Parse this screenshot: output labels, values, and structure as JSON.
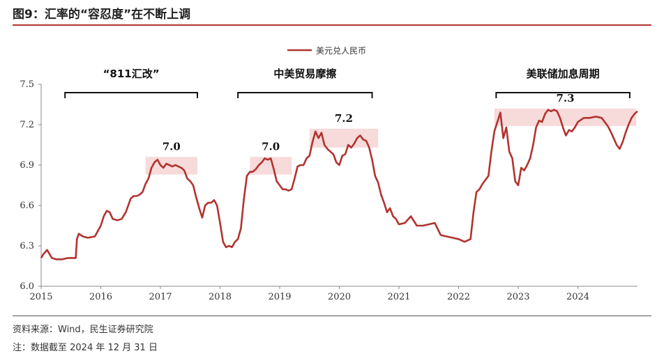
{
  "figure": {
    "title": "图9：汇率的“容忍度”在不断上调",
    "source": "资料来源：Wind，民生证券研究院",
    "note": "注：数据截至 2024 年 12 月 31 日"
  },
  "chart_data": {
    "type": "line",
    "title": "",
    "xlabel": "",
    "ylabel": "",
    "ylim": [
      6.0,
      7.5
    ],
    "yticks": [
      "6.0",
      "6.3",
      "6.6",
      "6.9",
      "7.2",
      "7.5"
    ],
    "xlim": [
      2015.0,
      2025.0
    ],
    "xticks": [
      "2015",
      "2016",
      "2017",
      "2018",
      "2019",
      "2020",
      "2021",
      "2022",
      "2023",
      "2024"
    ],
    "legend": {
      "position": "top-center"
    },
    "series": [
      {
        "name": "美元兑人民币",
        "color": "#b1332f",
        "x": [
          2015.0,
          2015.04,
          2015.1,
          2015.18,
          2015.25,
          2015.35,
          2015.45,
          2015.58,
          2015.6,
          2015.63,
          2015.7,
          2015.78,
          2015.9,
          2016.0,
          2016.05,
          2016.1,
          2016.15,
          2016.2,
          2016.28,
          2016.35,
          2016.42,
          2016.5,
          2016.55,
          2016.6,
          2016.65,
          2016.7,
          2016.75,
          2016.8,
          2016.85,
          2016.9,
          2016.95,
          2017.0,
          2017.05,
          2017.1,
          2017.15,
          2017.2,
          2017.25,
          2017.3,
          2017.35,
          2017.4,
          2017.45,
          2017.5,
          2017.55,
          2017.6,
          2017.65,
          2017.7,
          2017.75,
          2017.8,
          2017.85,
          2017.9,
          2017.95,
          2018.0,
          2018.05,
          2018.1,
          2018.15,
          2018.2,
          2018.25,
          2018.3,
          2018.35,
          2018.4,
          2018.45,
          2018.5,
          2018.55,
          2018.6,
          2018.65,
          2018.7,
          2018.75,
          2018.8,
          2018.85,
          2018.9,
          2018.95,
          2019.0,
          2019.05,
          2019.1,
          2019.15,
          2019.2,
          2019.25,
          2019.3,
          2019.35,
          2019.4,
          2019.45,
          2019.5,
          2019.55,
          2019.6,
          2019.65,
          2019.7,
          2019.75,
          2019.8,
          2019.85,
          2019.9,
          2019.95,
          2020.0,
          2020.05,
          2020.1,
          2020.15,
          2020.2,
          2020.25,
          2020.3,
          2020.35,
          2020.4,
          2020.45,
          2020.5,
          2020.55,
          2020.6,
          2020.65,
          2020.7,
          2020.75,
          2020.8,
          2020.85,
          2020.9,
          2020.95,
          2021.0,
          2021.1,
          2021.2,
          2021.3,
          2021.4,
          2021.5,
          2021.6,
          2021.7,
          2021.8,
          2021.9,
          2022.0,
          2022.1,
          2022.2,
          2022.25,
          2022.3,
          2022.35,
          2022.4,
          2022.45,
          2022.5,
          2022.55,
          2022.6,
          2022.65,
          2022.7,
          2022.75,
          2022.8,
          2022.85,
          2022.9,
          2022.95,
          2023.0,
          2023.05,
          2023.1,
          2023.15,
          2023.2,
          2023.25,
          2023.3,
          2023.35,
          2023.4,
          2023.45,
          2023.5,
          2023.55,
          2023.6,
          2023.65,
          2023.7,
          2023.75,
          2023.8,
          2023.85,
          2023.9,
          2023.95,
          2024.0,
          2024.1,
          2024.2,
          2024.3,
          2024.4,
          2024.5,
          2024.55,
          2024.6,
          2024.65,
          2024.7,
          2024.75,
          2024.8,
          2024.85,
          2024.9,
          2024.95,
          2025.0
        ],
        "y": [
          6.21,
          6.24,
          6.27,
          6.21,
          6.2,
          6.2,
          6.21,
          6.21,
          6.35,
          6.39,
          6.37,
          6.36,
          6.37,
          6.45,
          6.52,
          6.56,
          6.55,
          6.5,
          6.49,
          6.5,
          6.55,
          6.65,
          6.67,
          6.67,
          6.68,
          6.7,
          6.76,
          6.8,
          6.88,
          6.92,
          6.94,
          6.9,
          6.88,
          6.91,
          6.9,
          6.89,
          6.9,
          6.89,
          6.88,
          6.86,
          6.8,
          6.78,
          6.75,
          6.66,
          6.58,
          6.51,
          6.6,
          6.62,
          6.62,
          6.64,
          6.6,
          6.47,
          6.33,
          6.29,
          6.3,
          6.29,
          6.33,
          6.35,
          6.43,
          6.65,
          6.82,
          6.85,
          6.85,
          6.87,
          6.9,
          6.92,
          6.95,
          6.94,
          6.95,
          6.87,
          6.78,
          6.75,
          6.72,
          6.72,
          6.71,
          6.72,
          6.8,
          6.89,
          6.9,
          6.9,
          6.95,
          6.97,
          7.07,
          7.15,
          7.1,
          7.14,
          7.05,
          7.02,
          7.0,
          6.98,
          6.92,
          6.9,
          6.97,
          6.98,
          7.05,
          7.03,
          7.06,
          7.1,
          7.12,
          7.09,
          7.08,
          7.03,
          6.94,
          6.82,
          6.77,
          6.68,
          6.62,
          6.55,
          6.58,
          6.52,
          6.5,
          6.46,
          6.47,
          6.52,
          6.45,
          6.45,
          6.46,
          6.47,
          6.38,
          6.37,
          6.36,
          6.35,
          6.33,
          6.35,
          6.55,
          6.7,
          6.72,
          6.76,
          6.79,
          6.82,
          7.0,
          7.15,
          7.22,
          7.29,
          7.1,
          7.18,
          7.0,
          6.95,
          6.78,
          6.75,
          6.88,
          6.86,
          6.9,
          6.95,
          7.05,
          7.18,
          7.23,
          7.22,
          7.28,
          7.31,
          7.3,
          7.31,
          7.3,
          7.25,
          7.18,
          7.12,
          7.16,
          7.15,
          7.18,
          7.22,
          7.25,
          7.25,
          7.26,
          7.25,
          7.19,
          7.15,
          7.1,
          7.05,
          7.02,
          7.07,
          7.14,
          7.2,
          7.25,
          7.28,
          7.3
        ]
      }
    ],
    "highlight_boxes": [
      {
        "x_range": [
          2016.75,
          2017.62
        ],
        "y_range": [
          6.83,
          6.96
        ],
        "label": "7.0"
      },
      {
        "x_range": [
          2018.5,
          2019.2
        ],
        "y_range": [
          6.83,
          6.96
        ],
        "label": "7.0"
      },
      {
        "x_range": [
          2019.5,
          2020.65
        ],
        "y_range": [
          7.03,
          7.17
        ],
        "label": "7.2"
      },
      {
        "x_range": [
          2022.6,
          2024.98
        ],
        "y_range": [
          7.19,
          7.32
        ],
        "label": "7.3"
      }
    ],
    "event_brackets": [
      {
        "x_range": [
          2015.4,
          2017.62
        ],
        "label": "“811汇改”"
      },
      {
        "x_range": [
          2018.3,
          2020.55
        ],
        "label": "中美贸易摩擦"
      },
      {
        "x_range": [
          2022.63,
          2024.87
        ],
        "label": "美联储加息周期"
      }
    ]
  }
}
